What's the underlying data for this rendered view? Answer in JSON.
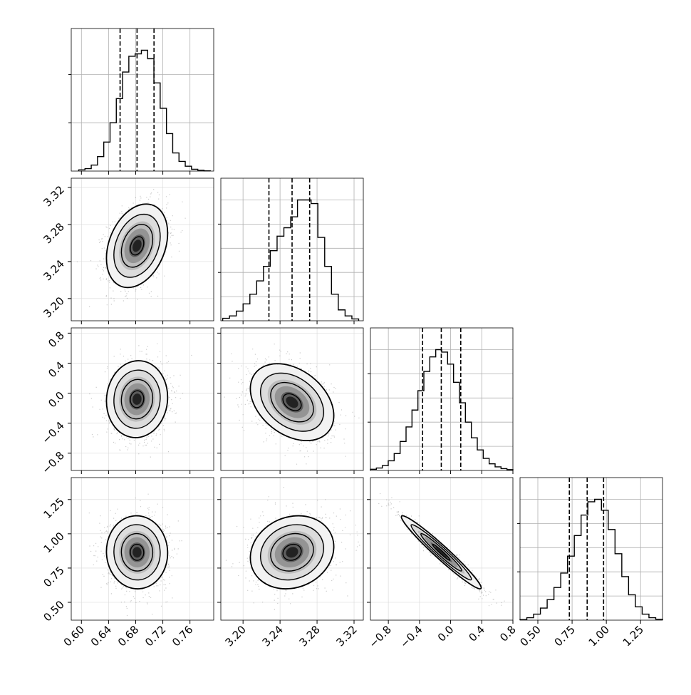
{
  "chart_data": {
    "type": "corner",
    "grid": true,
    "axes": {
      "x": [
        {
          "range": [
            0.585,
            0.795
          ],
          "ticks": [
            0.6,
            0.64,
            0.68,
            0.72,
            0.76
          ],
          "tick_labels": [
            "0.60",
            "0.64",
            "0.68",
            "0.72",
            "0.76"
          ]
        },
        {
          "range": [
            3.176,
            3.33
          ],
          "ticks": [
            3.2,
            3.24,
            3.28,
            3.32
          ],
          "tick_labels": [
            "3.20",
            "3.24",
            "3.28",
            "3.32"
          ]
        },
        {
          "range": [
            -1.03,
            0.8
          ],
          "ticks": [
            -0.8,
            -0.4,
            0.0,
            0.4,
            0.8
          ],
          "tick_labels": [
            "−0.8",
            "−0.4",
            "0.0",
            "0.4",
            "0.8"
          ]
        },
        {
          "range": [
            0.37,
            1.41
          ],
          "ticks": [
            0.5,
            0.75,
            1.0,
            1.25
          ],
          "tick_labels": [
            "0.50",
            "0.75",
            "1.00",
            "1.25"
          ]
        }
      ],
      "y": [
        null,
        {
          "range": [
            3.176,
            3.33
          ],
          "ticks": [
            3.2,
            3.24,
            3.28,
            3.32
          ],
          "tick_labels": [
            "3.20",
            "3.24",
            "3.28",
            "3.32"
          ]
        },
        {
          "range": [
            -1.03,
            0.87
          ],
          "ticks": [
            -0.8,
            -0.4,
            0.0,
            0.4,
            0.8
          ],
          "tick_labels": [
            "−0.8",
            "−0.4",
            "0.0",
            "0.4",
            "0.8"
          ]
        },
        {
          "range": [
            0.37,
            1.41
          ],
          "ticks": [
            0.5,
            0.75,
            1.0,
            1.25
          ],
          "tick_labels": [
            "0.50",
            "0.75",
            "1.00",
            "1.25"
          ]
        }
      ]
    },
    "histograms": [
      {
        "bin_edges_range": [
          0.596,
          0.79
        ],
        "counts": [
          0.01,
          0.02,
          0.05,
          0.12,
          0.24,
          0.4,
          0.6,
          0.82,
          0.95,
          0.97,
          1.0,
          0.93,
          0.73,
          0.52,
          0.31,
          0.15,
          0.08,
          0.04,
          0.015,
          0.007,
          0.002
        ],
        "quantiles": [
          0.657,
          0.682,
          0.707
        ],
        "ylim": [
          0,
          1.18
        ]
      },
      {
        "bin_edges_range": [
          3.178,
          3.325
        ],
        "counts": [
          0.02,
          0.04,
          0.08,
          0.14,
          0.22,
          0.33,
          0.45,
          0.58,
          0.7,
          0.77,
          0.86,
          1.0,
          1.0,
          0.97,
          0.69,
          0.45,
          0.22,
          0.09,
          0.04,
          0.015
        ],
        "quantiles": [
          3.228,
          3.253,
          3.272
        ],
        "ylim": [
          0,
          1.18
        ]
      },
      {
        "bin_edges_range": [
          -1.03,
          0.8
        ],
        "counts": [
          0.01,
          0.02,
          0.04,
          0.08,
          0.14,
          0.24,
          0.36,
          0.5,
          0.66,
          0.82,
          0.94,
          1.0,
          0.98,
          0.88,
          0.73,
          0.56,
          0.4,
          0.27,
          0.17,
          0.1,
          0.055,
          0.03,
          0.015,
          0.007
        ],
        "quantiles": [
          -0.36,
          -0.12,
          0.13
        ],
        "ylim": [
          0,
          1.18
        ]
      },
      {
        "bin_edges_range": [
          0.37,
          1.41
        ],
        "counts": [
          0.005,
          0.02,
          0.05,
          0.1,
          0.17,
          0.27,
          0.39,
          0.53,
          0.7,
          0.87,
          0.98,
          1.0,
          0.91,
          0.75,
          0.55,
          0.36,
          0.21,
          0.11,
          0.05,
          0.02,
          0.008
        ],
        "quantiles": [
          0.73,
          0.86,
          0.98
        ],
        "ylim": [
          0,
          1.18
        ]
      }
    ],
    "pairs": [
      {
        "row": 1,
        "col": 0,
        "mean": [
          0.682,
          3.257
        ],
        "sd": [
          0.022,
          0.022
        ],
        "corr": 0.3
      },
      {
        "row": 2,
        "col": 0,
        "mean": [
          0.682,
          -0.08
        ],
        "sd": [
          0.022,
          0.25
        ],
        "corr": 0.05
      },
      {
        "row": 2,
        "col": 1,
        "mean": [
          3.253,
          -0.12
        ],
        "sd": [
          0.022,
          0.25
        ],
        "corr": -0.35
      },
      {
        "row": 3,
        "col": 0,
        "mean": [
          0.682,
          0.865
        ],
        "sd": [
          0.022,
          0.13
        ],
        "corr": -0.02
      },
      {
        "row": 3,
        "col": 1,
        "mean": [
          3.253,
          0.865
        ],
        "sd": [
          0.022,
          0.13
        ],
        "corr": 0.15
      },
      {
        "row": 3,
        "col": 2,
        "mean": [
          -0.12,
          0.865
        ],
        "sd": [
          0.25,
          0.13
        ],
        "corr": -0.97
      }
    ],
    "contour_levels_sigma": [
      0.5,
      1.0,
      1.5,
      2.0
    ]
  }
}
